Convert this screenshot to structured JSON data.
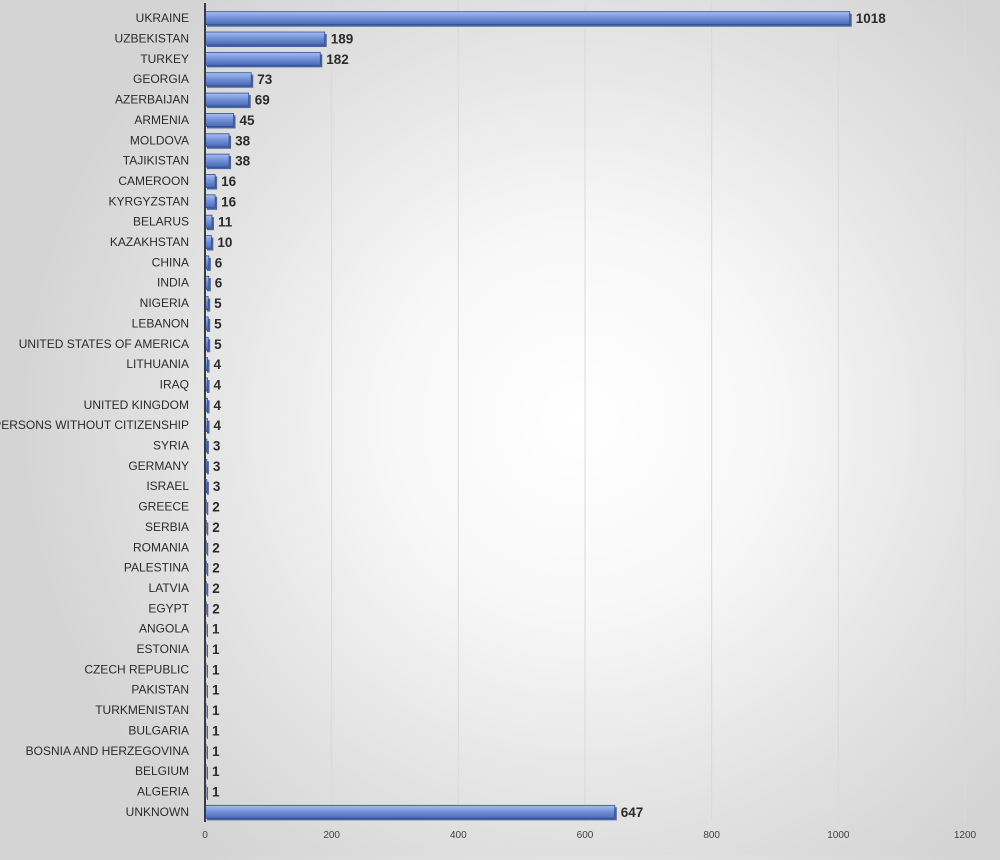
{
  "chart_data": {
    "type": "bar",
    "orientation": "horizontal",
    "title": "",
    "xlabel": "",
    "ylabel": "",
    "xlim": [
      0,
      1200
    ],
    "x_ticks": [
      0,
      200,
      400,
      600,
      800,
      1000,
      1200
    ],
    "grid": true,
    "legend": "none",
    "bar_color": "#6f8fd6",
    "bar_edge_color": "#2f4f97",
    "categories": [
      "UKRAINE",
      "UZBEKISTAN",
      "TURKEY",
      "GEORGIA",
      "AZERBAIJAN",
      "ARMENIA",
      "MOLDOVA",
      "TAJIKISTAN",
      "CAMEROON",
      "KYRGYZSTAN",
      "BELARUS",
      "KAZAKHSTAN",
      "CHINA",
      "INDIA",
      "NIGERIA",
      "LEBANON",
      "UNITED STATES OF AMERICA",
      "LITHUANIA",
      "IRAQ",
      "UNITED KINGDOM",
      "PERSONS WITHOUT CITIZENSHIP",
      "SYRIA",
      "GERMANY",
      "ISRAEL",
      "GREECE",
      "SERBIA",
      "ROMANIA",
      "PALESTINA",
      "LATVIA",
      "EGYPT",
      "ANGOLA",
      "ESTONIA",
      "CZECH REPUBLIC",
      "PAKISTAN",
      "TURKMENISTAN",
      "BULGARIA",
      "BOSNIA AND HERZEGOVINA",
      "BELGIUM",
      "ALGERIA",
      "UNKNOWN"
    ],
    "values": [
      1018,
      189,
      182,
      73,
      69,
      45,
      38,
      38,
      16,
      16,
      11,
      10,
      6,
      6,
      5,
      5,
      5,
      4,
      4,
      4,
      4,
      3,
      3,
      3,
      2,
      2,
      2,
      2,
      2,
      2,
      1,
      1,
      1,
      1,
      1,
      1,
      1,
      1,
      1,
      647
    ]
  }
}
